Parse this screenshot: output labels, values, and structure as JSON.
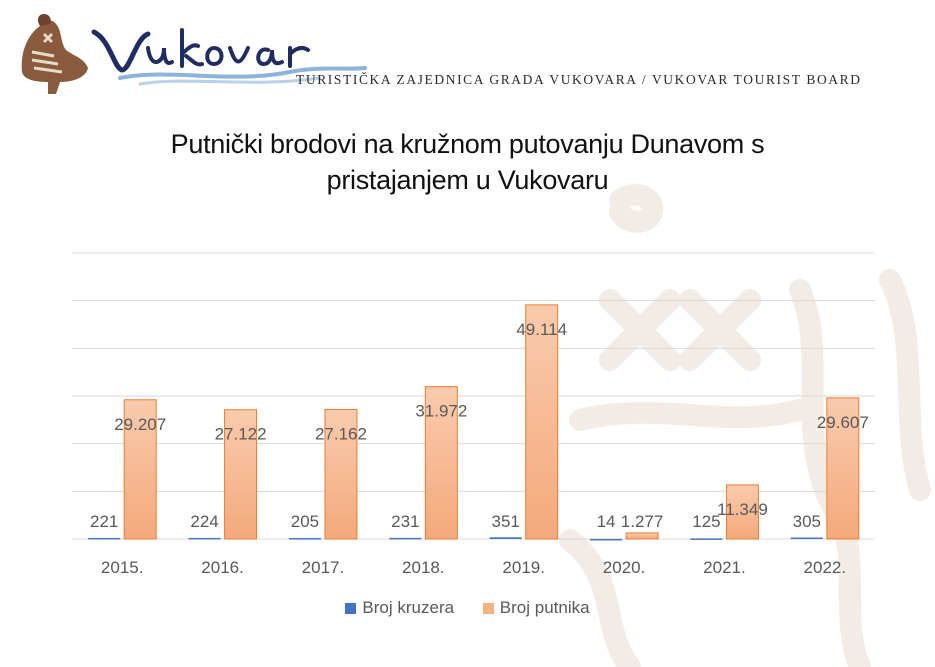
{
  "header": {
    "logo_wordmark": "Vukovar",
    "board_name": "TURISTIČKA ZAJEDNICA GRADA VUKOVARA / VUKOVAR TOURIST BOARD"
  },
  "colors": {
    "cruisers": "#4472c4",
    "passengers": "#f4b183",
    "passengers_dark": "#ed7d31",
    "label": "#595959",
    "grid": "#d9d9d9",
    "logo_blue": "#1f2d63",
    "wave_blue": "#8db3dd"
  },
  "chart_data": {
    "type": "bar",
    "title": "Putnički brodovi na kružnom putovanju Dunavom s pristajanjem u Vukovaru",
    "title_lines": [
      "Putnički brodovi na kružnom putovanju Dunavom s",
      "pristajanjem u Vukovaru"
    ],
    "categories": [
      "2015.",
      "2016.",
      "2017.",
      "2018.",
      "2019.",
      "2020.",
      "2021.",
      "2022."
    ],
    "series": [
      {
        "name": "Broj kruzera",
        "values": [
          221,
          224,
          205,
          231,
          351,
          14,
          125,
          305
        ],
        "labels": [
          "221",
          "224",
          "205",
          "231",
          "351",
          "14",
          "125",
          "305"
        ]
      },
      {
        "name": "Broj putnika",
        "values": [
          29207,
          27122,
          27162,
          31972,
          49114,
          1277,
          11349,
          29607
        ],
        "labels": [
          "29.207",
          "27.122",
          "27.162",
          "31.972",
          "49.114",
          "1.277",
          "11.349",
          "29.607"
        ]
      }
    ],
    "ylim": [
      0,
      60000
    ],
    "grid": true,
    "legend_position": "bottom"
  }
}
